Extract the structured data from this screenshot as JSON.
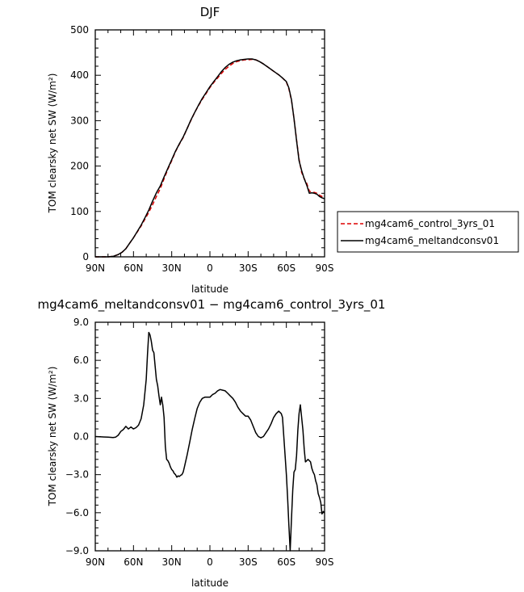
{
  "chart_data": [
    {
      "type": "line",
      "title": "DJF",
      "xlabel": "latitude",
      "ylabel": "TOM clearsky net SW (W/m²)",
      "xlim": [
        -90,
        90
      ],
      "ylim": [
        0,
        500
      ],
      "x_ticks": [
        -90,
        -60,
        -30,
        0,
        30,
        60,
        90
      ],
      "x_tick_labels": [
        "90N",
        "60N",
        "30N",
        "0",
        "30S",
        "60S",
        "90S"
      ],
      "y_ticks": [
        0,
        100,
        200,
        300,
        400,
        500
      ],
      "y_tick_labels": [
        "0",
        "100",
        "200",
        "300",
        "400",
        "500"
      ],
      "legend_position": "right",
      "series": [
        {
          "name": "mg4cam6_control_3yrs_01",
          "color": "#dd0000",
          "dash": "dashed",
          "x": [
            -90,
            -80,
            -76,
            -72,
            -69,
            -66,
            -63,
            -60,
            -57,
            -54,
            -51,
            -48,
            -45,
            -42,
            -39,
            -36,
            -33,
            -30,
            -27,
            -24,
            -21,
            -18,
            -15,
            -12,
            -9,
            -6,
            -3,
            0,
            3,
            6,
            9,
            12,
            15,
            18,
            21,
            24,
            27,
            30,
            33,
            36,
            39,
            42,
            45,
            48,
            51,
            54,
            57,
            60,
            62,
            64,
            66,
            68,
            70,
            72,
            74,
            76,
            78,
            80,
            82,
            84,
            86,
            88,
            90
          ],
          "y": [
            0,
            0,
            1,
            5,
            10,
            18,
            30,
            42,
            55,
            68,
            83,
            98,
            115,
            133,
            150,
            172,
            193,
            212,
            232,
            248,
            263,
            282,
            300,
            318,
            333,
            347,
            360,
            373,
            384,
            394,
            404,
            413,
            420,
            426,
            430,
            432,
            434,
            434,
            435,
            434,
            430,
            425,
            419,
            413,
            407,
            401,
            394,
            385,
            370,
            345,
            305,
            258,
            215,
            186,
            172,
            162,
            145,
            142,
            142,
            140,
            136,
            133,
            132
          ]
        },
        {
          "name": "mg4cam6_meltandconsv01",
          "color": "#000000",
          "dash": "solid",
          "x": [
            -90,
            -80,
            -76,
            -72,
            -69,
            -66,
            -63,
            -60,
            -57,
            -54,
            -51,
            -48,
            -45,
            -42,
            -39,
            -36,
            -33,
            -30,
            -27,
            -24,
            -21,
            -18,
            -15,
            -12,
            -9,
            -6,
            -3,
            0,
            3,
            6,
            9,
            12,
            15,
            18,
            21,
            24,
            27,
            30,
            33,
            36,
            39,
            42,
            45,
            48,
            51,
            54,
            57,
            60,
            62,
            64,
            66,
            68,
            70,
            72,
            74,
            76,
            78,
            80,
            82,
            84,
            86,
            88,
            90
          ],
          "y": [
            0,
            0,
            1,
            5,
            10,
            18,
            30,
            42,
            56,
            70,
            86,
            103,
            123,
            141,
            156,
            176,
            195,
            214,
            233,
            249,
            264,
            282,
            301,
            318,
            334,
            349,
            362,
            375,
            386,
            397,
            408,
            417,
            424,
            429,
            432,
            434,
            435,
            436,
            436,
            434,
            430,
            425,
            419,
            413,
            407,
            401,
            394,
            386,
            372,
            346,
            305,
            256,
            212,
            190,
            172,
            158,
            140,
            141,
            140,
            138,
            133,
            130,
            128
          ]
        }
      ]
    },
    {
      "type": "line",
      "title": "mg4cam6_meltandconsv01 − mg4cam6_control_3yrs_01",
      "xlabel": "latitude",
      "ylabel": "TOM clearsky net SW (W/m²)",
      "xlim": [
        -90,
        90
      ],
      "ylim": [
        -9,
        9
      ],
      "x_ticks": [
        -90,
        -60,
        -30,
        0,
        30,
        60,
        90
      ],
      "x_tick_labels": [
        "90N",
        "60N",
        "30N",
        "0",
        "30S",
        "60S",
        "90S"
      ],
      "y_ticks": [
        -9,
        -6,
        -3,
        0,
        3,
        6,
        9
      ],
      "y_tick_labels": [
        "−9.0",
        "−6.0",
        "−3.0",
        "0.0",
        "3.0",
        "6.0",
        "9.0"
      ],
      "series": [
        {
          "name": "",
          "color": "#000000",
          "dash": "solid",
          "x": [
            -90,
            -80,
            -76,
            -74,
            -72,
            -70,
            -68,
            -66,
            -64,
            -62,
            -60,
            -58,
            -56,
            -54,
            -52,
            -50,
            -49,
            -48,
            -47,
            -46,
            -45,
            -44,
            -43,
            -42,
            -41,
            -40,
            -39,
            -38,
            -37,
            -36,
            -35,
            -34,
            -33,
            -32,
            -31,
            -30,
            -29,
            -28,
            -27,
            -26,
            -25,
            -24,
            -23,
            -22,
            -21,
            -20,
            -18,
            -16,
            -14,
            -12,
            -10,
            -8,
            -6,
            -4,
            -2,
            0,
            2,
            4,
            6,
            8,
            10,
            12,
            14,
            16,
            18,
            20,
            22,
            24,
            26,
            28,
            30,
            32,
            34,
            36,
            38,
            40,
            42,
            44,
            46,
            48,
            50,
            52,
            54,
            56,
            57,
            58,
            59,
            60,
            61,
            62,
            63,
            64,
            65,
            66,
            67,
            68,
            69,
            70,
            71,
            72,
            73,
            74,
            75,
            76,
            77,
            78,
            79,
            80,
            81,
            82,
            83,
            84,
            85,
            86,
            87,
            88,
            89,
            90
          ],
          "y": [
            0,
            -0.05,
            -0.08,
            -0.05,
            0.1,
            0.4,
            0.55,
            0.8,
            0.6,
            0.75,
            0.6,
            0.7,
            0.9,
            1.4,
            2.5,
            4.5,
            6.5,
            8.2,
            8.0,
            7.5,
            6.8,
            6.6,
            5.5,
            4.5,
            4.0,
            3.2,
            2.5,
            3.1,
            2.5,
            1.5,
            -0.8,
            -1.8,
            -1.9,
            -2.1,
            -2.4,
            -2.6,
            -2.7,
            -2.9,
            -3.0,
            -3.2,
            -3.1,
            -3.15,
            -3.05,
            -3.0,
            -2.8,
            -2.4,
            -1.5,
            -0.5,
            0.5,
            1.4,
            2.2,
            2.7,
            3.0,
            3.1,
            3.1,
            3.1,
            3.3,
            3.4,
            3.6,
            3.7,
            3.65,
            3.6,
            3.4,
            3.2,
            3.0,
            2.7,
            2.3,
            2.0,
            1.8,
            1.6,
            1.6,
            1.3,
            0.8,
            0.3,
            0.0,
            -0.1,
            0.0,
            0.3,
            0.6,
            1.0,
            1.5,
            1.8,
            2.0,
            1.8,
            1.5,
            0.0,
            -1.5,
            -3.0,
            -4.8,
            -7.0,
            -9.0,
            -6.5,
            -4.2,
            -2.8,
            -2.6,
            -1.5,
            0.5,
            1.8,
            2.5,
            1.5,
            0.5,
            -1.0,
            -2.0,
            -1.9,
            -1.8,
            -1.9,
            -2.0,
            -2.5,
            -2.8,
            -3.0,
            -3.5,
            -3.8,
            -4.5,
            -4.8,
            -5.2,
            -6.1,
            -5.9,
            -6.0
          ]
        }
      ]
    }
  ]
}
